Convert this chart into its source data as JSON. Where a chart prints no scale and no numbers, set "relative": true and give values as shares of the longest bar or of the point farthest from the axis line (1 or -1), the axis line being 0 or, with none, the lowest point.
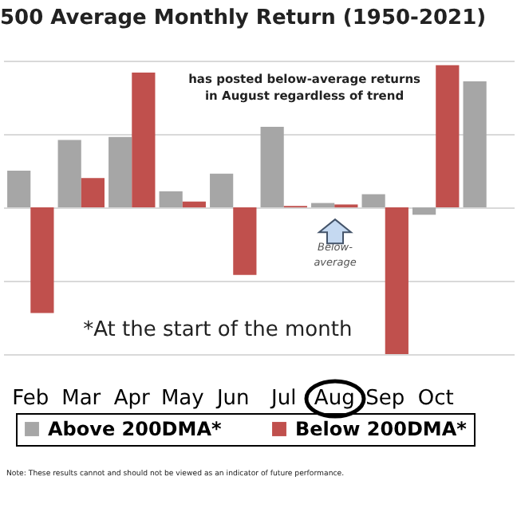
{
  "chart_data": {
    "type": "bar",
    "title": "500 Average Monthly Return (1950-2021)",
    "relative": true,
    "grid": "y",
    "legend": "bottom",
    "categories": [
      "Feb",
      "Mar",
      "Apr",
      "May",
      "Jun",
      "Jul",
      "Aug",
      "Sep",
      "Oct",
      null
    ],
    "series": [
      {
        "name": "Above 200DMA*",
        "color": "#a6a6a6",
        "values": [
          0.25,
          0.46,
          0.48,
          0.11,
          0.23,
          0.55,
          0.03,
          0.09,
          -0.05,
          0.86
        ]
      },
      {
        "name": "Below 200DMA*",
        "color": "#c0504d",
        "values": [
          -0.72,
          0.2,
          0.92,
          0.04,
          -0.46,
          0.01,
          0.02,
          -1,
          0.97,
          null
        ]
      }
    ],
    "annotations": [
      "has posted below-average returns in August regardless of trend",
      "Below-average",
      "*At the start of the month",
      "Note: These results cannot and should not be viewed as an indicator of future performance."
    ]
  }
}
